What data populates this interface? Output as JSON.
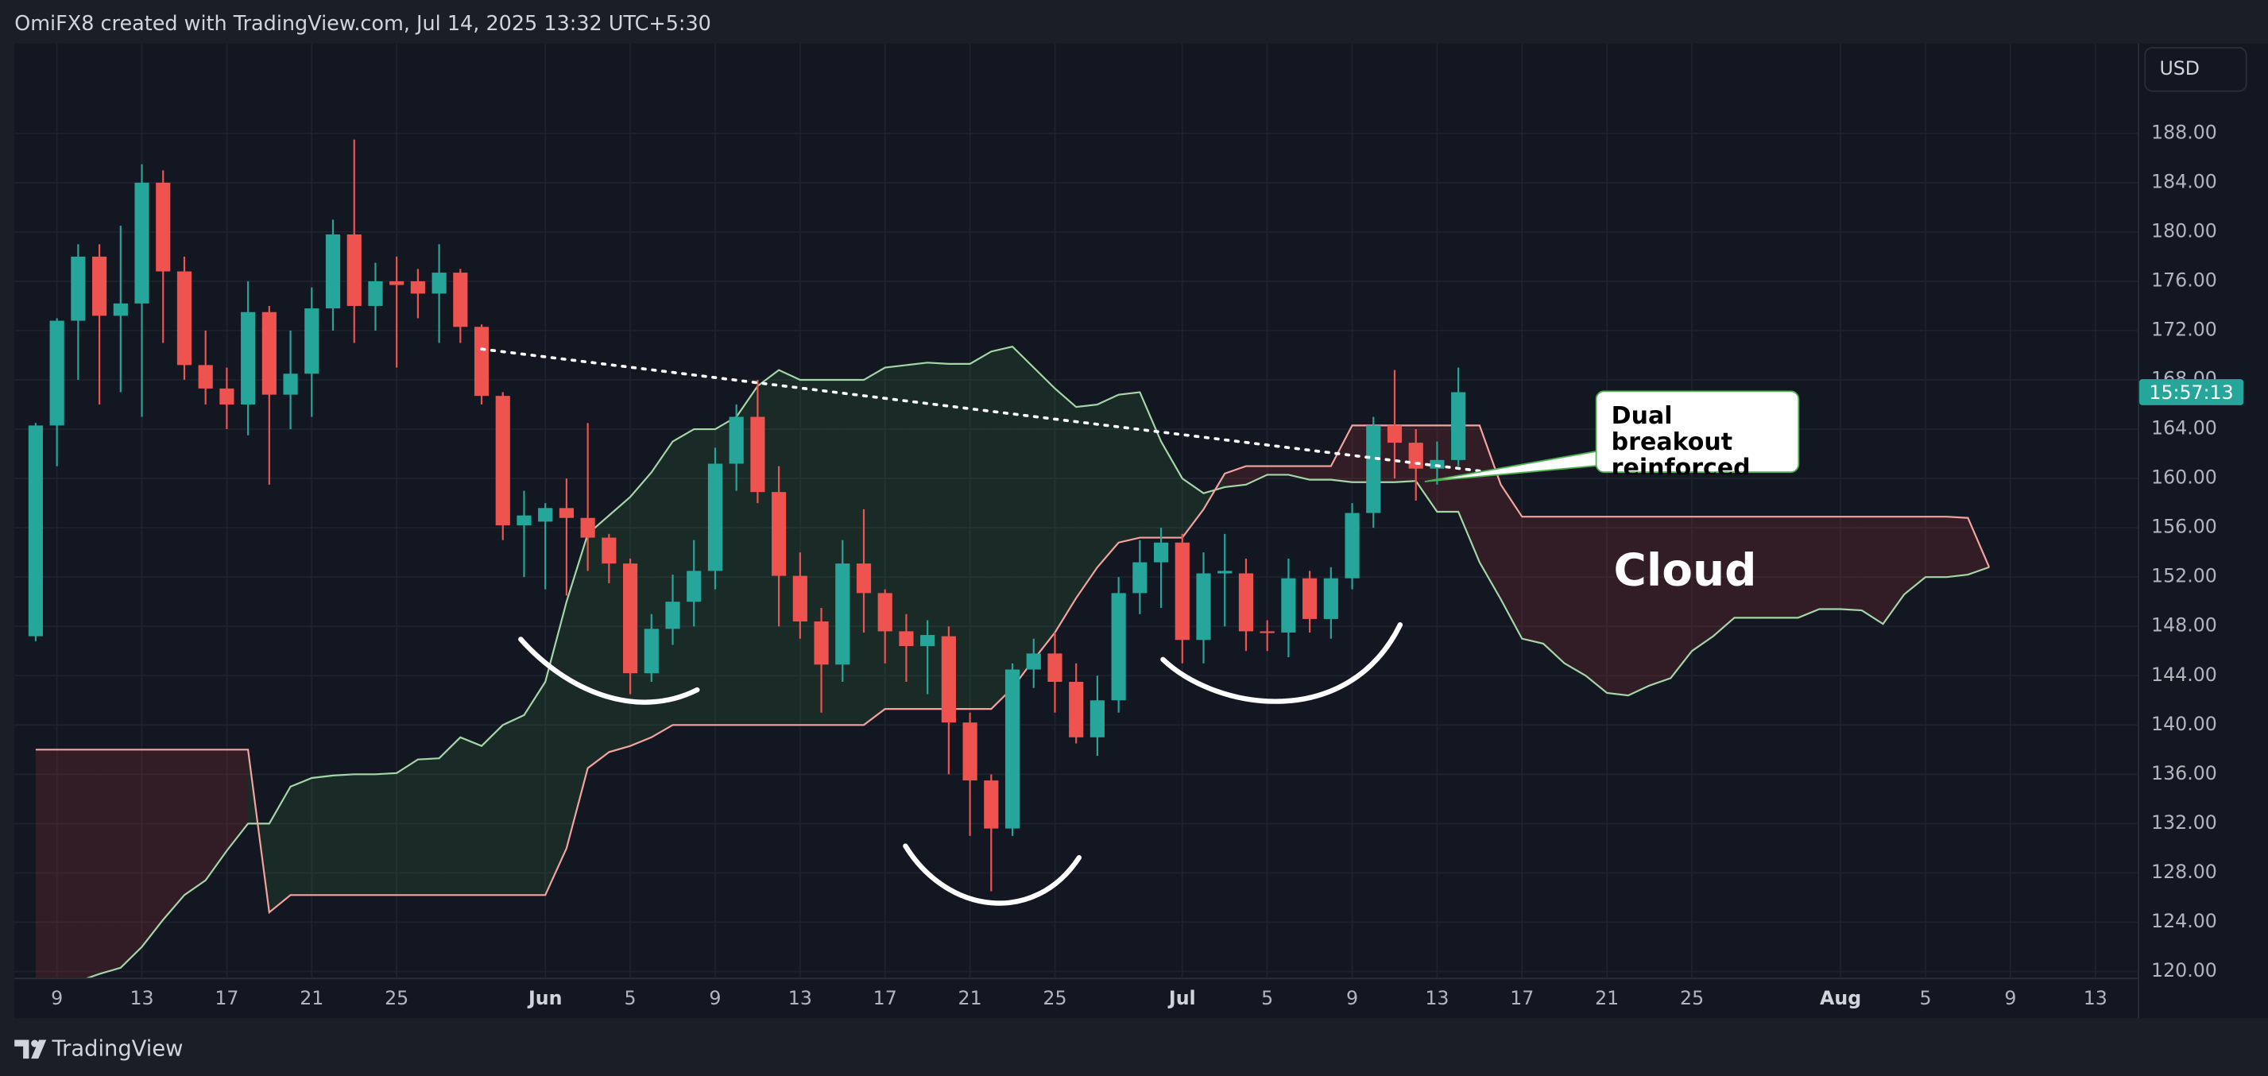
{
  "header": {
    "title": "OmiFX8 created with TradingView.com, Jul 14, 2025 13:32 UTC+5:30",
    "currency": "USD"
  },
  "footer": {
    "brand": "TradingView"
  },
  "chart_data": {
    "type": "candlestick",
    "x": [
      "2025-05-08",
      "2025-05-09",
      "2025-05-10",
      "2025-05-11",
      "2025-05-12",
      "2025-05-13",
      "2025-05-14",
      "2025-05-15",
      "2025-05-16",
      "2025-05-17",
      "2025-05-18",
      "2025-05-19",
      "2025-05-20",
      "2025-05-21",
      "2025-05-22",
      "2025-05-23",
      "2025-05-24",
      "2025-05-25",
      "2025-05-26",
      "2025-05-27",
      "2025-05-28",
      "2025-05-29",
      "2025-05-30",
      "2025-05-31",
      "2025-06-01",
      "2025-06-02",
      "2025-06-03",
      "2025-06-04",
      "2025-06-05",
      "2025-06-06",
      "2025-06-07",
      "2025-06-08",
      "2025-06-09",
      "2025-06-10",
      "2025-06-11",
      "2025-06-12",
      "2025-06-13",
      "2025-06-14",
      "2025-06-15",
      "2025-06-16",
      "2025-06-17",
      "2025-06-18",
      "2025-06-19",
      "2025-06-20",
      "2025-06-21",
      "2025-06-22",
      "2025-06-23",
      "2025-06-24",
      "2025-06-25",
      "2025-06-26",
      "2025-06-27",
      "2025-06-28",
      "2025-06-29",
      "2025-06-30",
      "2025-07-01",
      "2025-07-02",
      "2025-07-03",
      "2025-07-04",
      "2025-07-05",
      "2025-07-06",
      "2025-07-07",
      "2025-07-08",
      "2025-07-09",
      "2025-07-10",
      "2025-07-11",
      "2025-07-12",
      "2025-07-13",
      "2025-07-14"
    ],
    "open": [
      147.2,
      164.3,
      172.8,
      178,
      173.2,
      174.2,
      184,
      176.8,
      169.2,
      167.3,
      166,
      173.5,
      166.8,
      168.5,
      173.8,
      179.8,
      174,
      176,
      176,
      175,
      176.7,
      172.3,
      166.7,
      156.2,
      156.5,
      157.6,
      156.8,
      155.2,
      153.1,
      144.2,
      147.8,
      150,
      152.5,
      161.2,
      165,
      158.9,
      152.1,
      148.4,
      144.9,
      153.1,
      150.7,
      147.6,
      146.4,
      147.2,
      140.2,
      135.5,
      131.6,
      144.5,
      145.8,
      143.5,
      139,
      142,
      150.7,
      153.2,
      154.8,
      146.9,
      152.3,
      152.3,
      147.6,
      147.5,
      151.9,
      148.6,
      151.9,
      157.2,
      164.3,
      162.9,
      160.8,
      161.5
    ],
    "high": [
      164.5,
      173,
      179,
      179,
      180.5,
      185.5,
      185,
      178,
      172,
      169,
      176,
      174,
      172,
      175.5,
      181,
      187.5,
      177.5,
      178,
      177,
      179,
      177,
      172.5,
      167,
      159,
      158,
      160,
      164.5,
      155.5,
      153.5,
      149,
      152.2,
      155,
      162.5,
      166,
      168,
      161,
      154,
      149.5,
      155,
      157.5,
      151,
      149,
      148.5,
      148,
      141,
      136,
      145,
      147,
      147.5,
      145,
      144,
      152,
      155,
      156,
      155.5,
      154,
      155.5,
      153.5,
      148.5,
      153.5,
      152.5,
      152.8,
      158,
      165,
      168.8,
      164,
      163,
      169
    ],
    "low": [
      146.8,
      161,
      168,
      166,
      167,
      165,
      171,
      168,
      166,
      164,
      163.5,
      159.5,
      164,
      165,
      172,
      171,
      172,
      169,
      173,
      171,
      171,
      166,
      155,
      152,
      151,
      150.5,
      152.5,
      151.5,
      142.5,
      143.5,
      146.5,
      148,
      151,
      159,
      158,
      148,
      147,
      141,
      143.5,
      147.5,
      145,
      143.5,
      142.5,
      136,
      131,
      126.5,
      131,
      143,
      141,
      138.5,
      137.5,
      141,
      149,
      149.5,
      145,
      145,
      148,
      146,
      146,
      145.5,
      147.5,
      147,
      151,
      156,
      160,
      158.2,
      159.5,
      161
    ],
    "close": [
      164.3,
      172.8,
      178,
      173.2,
      174.2,
      184,
      176.8,
      169.2,
      167.3,
      166,
      173.5,
      166.8,
      168.5,
      173.8,
      179.8,
      174,
      176,
      175.7,
      175,
      176.7,
      172.3,
      166.7,
      156.2,
      157,
      157.6,
      156.8,
      155.2,
      153.1,
      144.2,
      147.8,
      150,
      152.5,
      161.2,
      165,
      158.9,
      152.1,
      148.4,
      144.9,
      153.1,
      150.7,
      147.6,
      146.4,
      147.3,
      140.2,
      135.5,
      131.6,
      144.5,
      145.8,
      143.5,
      139,
      142,
      150.7,
      153.2,
      154.8,
      146.9,
      152.3,
      152.5,
      147.6,
      147.5,
      151.9,
      148.6,
      151.9,
      157.2,
      164.3,
      162.9,
      160.8,
      161.5,
      167
    ],
    "up_color": "#26a69a",
    "down_color": "#ef5350",
    "countdown": "15:57:13",
    "cloud": {
      "x": [
        "2025-05-08",
        "2025-05-09",
        "2025-05-10",
        "2025-05-11",
        "2025-05-12",
        "2025-05-13",
        "2025-05-14",
        "2025-05-15",
        "2025-05-16",
        "2025-05-17",
        "2025-05-18",
        "2025-05-19",
        "2025-05-20",
        "2025-05-21",
        "2025-05-22",
        "2025-05-23",
        "2025-05-24",
        "2025-05-25",
        "2025-05-26",
        "2025-05-27",
        "2025-05-28",
        "2025-05-29",
        "2025-05-30",
        "2025-05-31",
        "2025-06-01",
        "2025-06-02",
        "2025-06-03",
        "2025-06-04",
        "2025-06-05",
        "2025-06-06",
        "2025-06-07",
        "2025-06-08",
        "2025-06-09",
        "2025-06-10",
        "2025-06-11",
        "2025-06-12",
        "2025-06-13",
        "2025-06-14",
        "2025-06-15",
        "2025-06-16",
        "2025-06-17",
        "2025-06-18",
        "2025-06-19",
        "2025-06-20",
        "2025-06-21",
        "2025-06-22",
        "2025-06-23",
        "2025-06-24",
        "2025-06-25",
        "2025-06-26",
        "2025-06-27",
        "2025-06-28",
        "2025-06-29",
        "2025-06-30",
        "2025-07-01",
        "2025-07-02",
        "2025-07-03",
        "2025-07-04",
        "2025-07-05",
        "2025-07-06",
        "2025-07-07",
        "2025-07-08",
        "2025-07-09",
        "2025-07-10",
        "2025-07-11",
        "2025-07-12",
        "2025-07-13",
        "2025-07-14",
        "2025-07-15",
        "2025-07-16",
        "2025-07-17",
        "2025-07-18",
        "2025-07-19",
        "2025-07-20",
        "2025-07-21",
        "2025-07-22",
        "2025-07-23",
        "2025-07-24",
        "2025-07-25",
        "2025-07-26",
        "2025-07-27",
        "2025-07-28",
        "2025-07-29",
        "2025-07-30",
        "2025-07-31",
        "2025-08-01",
        "2025-08-02",
        "2025-08-03",
        "2025-08-04",
        "2025-08-05",
        "2025-08-06",
        "2025-08-07",
        "2025-08-08"
      ],
      "span_a": [
        118,
        118.6,
        119.2,
        119.8,
        120.3,
        122,
        124.2,
        126.2,
        127.4,
        129.8,
        132,
        132,
        135,
        135.7,
        135.9,
        136,
        136,
        136.1,
        137.2,
        137.3,
        139,
        138.3,
        140,
        140.8,
        143.5,
        150,
        155.5,
        157,
        158.5,
        160.5,
        163,
        164,
        164,
        165,
        167.5,
        168.8,
        168,
        168,
        168,
        168,
        169,
        169.2,
        169.4,
        169.3,
        169.3,
        170.3,
        170.7,
        169,
        167.3,
        165.8,
        166,
        166.8,
        167,
        163,
        160,
        158.8,
        159.3,
        159.5,
        160.3,
        160.3,
        159.9,
        159.9,
        159.7,
        159.7,
        159.7,
        159.8,
        157.3,
        157.3,
        153.2,
        150.2,
        147,
        146.6,
        145,
        144,
        142.6,
        142.4,
        143.2,
        143.8,
        146,
        147.2,
        148.7,
        148.7,
        148.7,
        148.7,
        149.4,
        149.4,
        149.3,
        148.2,
        150.6,
        152,
        152,
        152.2,
        152.8
      ],
      "span_b": [
        138,
        138,
        138,
        138,
        138,
        138,
        138,
        138,
        138,
        138,
        138,
        124.8,
        126.2,
        126.2,
        126.2,
        126.2,
        126.2,
        126.2,
        126.2,
        126.2,
        126.2,
        126.2,
        126.2,
        126.2,
        126.2,
        130,
        136.5,
        137.8,
        138.3,
        139,
        140,
        140,
        140,
        140,
        140,
        140,
        140,
        140,
        140,
        140,
        141.3,
        141.3,
        141.3,
        141.3,
        141.3,
        141.3,
        143,
        145.3,
        147.5,
        150.3,
        152.8,
        154.8,
        155.2,
        155.2,
        155.2,
        157.5,
        160.4,
        161,
        161,
        161,
        161,
        161,
        164.3,
        164.3,
        164.3,
        164.3,
        164.3,
        164.3,
        164.3,
        159.5,
        156.9,
        156.9,
        156.9,
        156.9,
        156.9,
        156.9,
        156.9,
        156.9,
        156.9,
        156.9,
        156.9,
        156.9,
        156.9,
        156.9,
        156.9,
        156.9,
        156.9,
        156.9,
        156.9,
        156.9,
        156.9,
        156.8,
        152.8
      ],
      "span_a_color": "#a5d6a7",
      "span_b_color": "#f4a39e",
      "up_fill": "rgba(76,175,80,0.13)",
      "down_fill": "rgba(244,67,54,0.14)"
    },
    "trendline": {
      "start": {
        "x": "2025-05-29",
        "y": 170.5
      },
      "end": {
        "x": "2025-07-16",
        "y": 160.4
      },
      "color": "#ffffff"
    },
    "annotations": {
      "callout": "Dual breakout reinforced",
      "cloud_label": "Cloud"
    },
    "xlim": [
      "2025-05-07",
      "2025-08-15"
    ],
    "xticks": [
      {
        "value": "2025-05-09",
        "label": "9"
      },
      {
        "value": "2025-05-13",
        "label": "13"
      },
      {
        "value": "2025-05-17",
        "label": "17"
      },
      {
        "value": "2025-05-21",
        "label": "21"
      },
      {
        "value": "2025-05-25",
        "label": "25"
      },
      {
        "value": "2025-06-01",
        "label": "Jun"
      },
      {
        "value": "2025-06-05",
        "label": "5"
      },
      {
        "value": "2025-06-09",
        "label": "9"
      },
      {
        "value": "2025-06-13",
        "label": "13"
      },
      {
        "value": "2025-06-17",
        "label": "17"
      },
      {
        "value": "2025-06-21",
        "label": "21"
      },
      {
        "value": "2025-06-25",
        "label": "25"
      },
      {
        "value": "2025-07-01",
        "label": "Jul"
      },
      {
        "value": "2025-07-05",
        "label": "5"
      },
      {
        "value": "2025-07-09",
        "label": "9"
      },
      {
        "value": "2025-07-13",
        "label": "13"
      },
      {
        "value": "2025-07-17",
        "label": "17"
      },
      {
        "value": "2025-07-21",
        "label": "21"
      },
      {
        "value": "2025-07-25",
        "label": "25"
      },
      {
        "value": "2025-08-01",
        "label": "Aug"
      },
      {
        "value": "2025-08-05",
        "label": "5"
      },
      {
        "value": "2025-08-09",
        "label": "9"
      },
      {
        "value": "2025-08-13",
        "label": "13"
      }
    ],
    "ylim": [
      119.5,
      195.3
    ],
    "yticks": [
      {
        "value": 120,
        "label": "120.00"
      },
      {
        "value": 124,
        "label": "124.00"
      },
      {
        "value": 128,
        "label": "128.00"
      },
      {
        "value": 132,
        "label": "132.00"
      },
      {
        "value": 136,
        "label": "136.00"
      },
      {
        "value": 140,
        "label": "140.00"
      },
      {
        "value": 144,
        "label": "144.00"
      },
      {
        "value": 148,
        "label": "148.00"
      },
      {
        "value": 152,
        "label": "152.00"
      },
      {
        "value": 156,
        "label": "156.00"
      },
      {
        "value": 160,
        "label": "160.00"
      },
      {
        "value": 164,
        "label": "164.00"
      },
      {
        "value": 168,
        "label": "168.00"
      },
      {
        "value": 172,
        "label": "172.00"
      },
      {
        "value": 176,
        "label": "176.00"
      },
      {
        "value": 180,
        "label": "180.00"
      },
      {
        "value": 184,
        "label": "184.00"
      },
      {
        "value": 188,
        "label": "188.00"
      }
    ],
    "grid": true
  }
}
